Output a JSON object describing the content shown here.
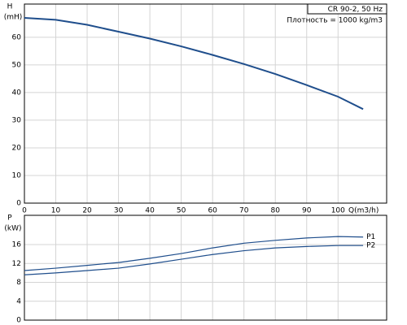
{
  "chart_data": [
    {
      "type": "line",
      "y_label": "H",
      "y_unit": "(mH)",
      "x_label": "Q(m3/h)",
      "annotations": [
        "CR 90-2, 50 Hz",
        "Плотность = 1000 kg/m3"
      ],
      "x": [
        0,
        10,
        20,
        30,
        40,
        50,
        60,
        70,
        80,
        90,
        100,
        108
      ],
      "series": [
        {
          "color": "#1f4e8c",
          "values": [
            67,
            66.3,
            64.5,
            62,
            59.5,
            56.7,
            53.6,
            50.3,
            46.7,
            42.7,
            38.5,
            34
          ]
        }
      ],
      "xlim": [
        0,
        115.5
      ],
      "xticks": [
        0,
        10,
        20,
        30,
        40,
        50,
        60,
        70,
        80,
        90,
        100
      ],
      "ylim": [
        0,
        72
      ],
      "yticks": [
        0,
        10,
        20,
        30,
        40,
        50,
        60
      ],
      "grid": true
    },
    {
      "type": "line",
      "y_label": "P",
      "y_unit": "(kW)",
      "x": [
        0,
        10,
        20,
        30,
        40,
        50,
        60,
        70,
        80,
        90,
        100,
        108
      ],
      "series": [
        {
          "name": "P1",
          "color": "#1f4e8c",
          "values": [
            10.5,
            11,
            11.6,
            12.2,
            13.1,
            14.1,
            15.3,
            16.3,
            16.9,
            17.4,
            17.7,
            17.6
          ]
        },
        {
          "name": "P2",
          "color": "#1f4e8c",
          "values": [
            9.6,
            10,
            10.5,
            11,
            11.9,
            12.9,
            13.9,
            14.7,
            15.3,
            15.6,
            15.8,
            15.8
          ]
        }
      ],
      "xlim": [
        0,
        115.5
      ],
      "xticks": [
        0,
        10,
        20,
        30,
        40,
        50,
        60,
        70,
        80,
        90,
        100
      ],
      "ylim": [
        0,
        22.2
      ],
      "yticks": [
        0,
        4,
        8,
        12,
        16
      ],
      "grid": true
    }
  ]
}
